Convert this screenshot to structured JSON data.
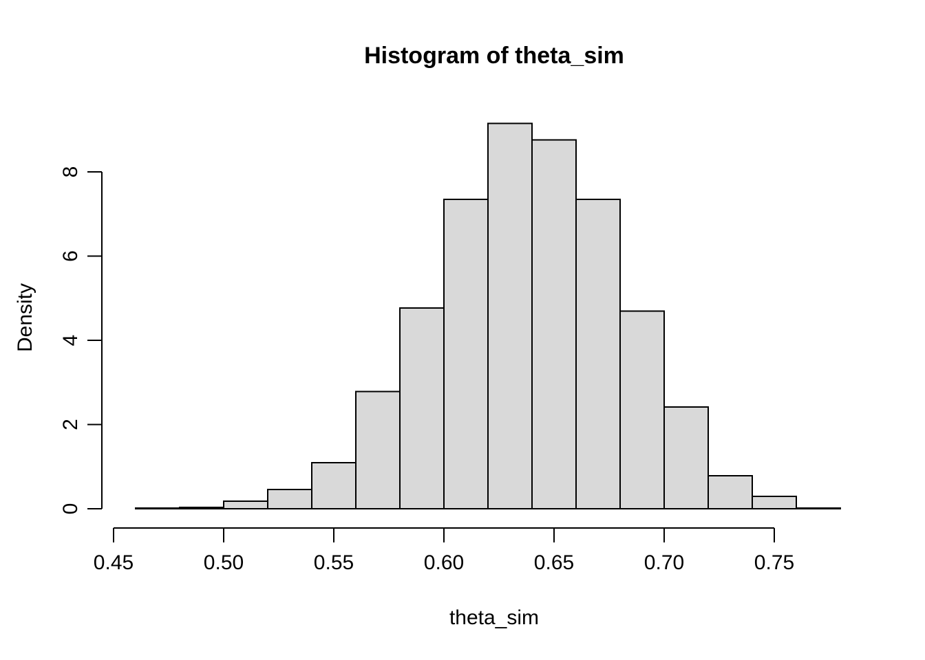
{
  "chart_data": {
    "type": "bar",
    "subtype": "histogram",
    "title": "Histogram of theta_sim",
    "xlabel": "theta_sim",
    "ylabel": "Density",
    "bin_start": 0.46,
    "bin_width": 0.02,
    "bin_edges": [
      0.46,
      0.48,
      0.5,
      0.52,
      0.54,
      0.56,
      0.58,
      0.6,
      0.62,
      0.64,
      0.66,
      0.68,
      0.7,
      0.72,
      0.74,
      0.76,
      0.78
    ],
    "densities": [
      0.02,
      0.03,
      0.18,
      0.46,
      1.09,
      2.78,
      4.77,
      7.35,
      9.15,
      8.76,
      7.35,
      4.69,
      2.42,
      0.78,
      0.29,
      0.02
    ],
    "x_tick_values": [
      0.45,
      0.5,
      0.55,
      0.6,
      0.65,
      0.7,
      0.75
    ],
    "x_tick_labels": [
      "0.45",
      "0.50",
      "0.55",
      "0.60",
      "0.65",
      "0.70",
      "0.75"
    ],
    "y_tick_values": [
      0,
      2,
      4,
      6,
      8
    ],
    "y_tick_labels": [
      "0",
      "2",
      "4",
      "6",
      "8"
    ],
    "xlim": [
      0.45,
      0.78
    ],
    "ylim": [
      0,
      9.2
    ],
    "grid": false,
    "legend": "none",
    "bar_fill": "#d9d9d9",
    "bar_stroke": "#000000",
    "axis_color": "#000000",
    "background_color": "#ffffff"
  }
}
